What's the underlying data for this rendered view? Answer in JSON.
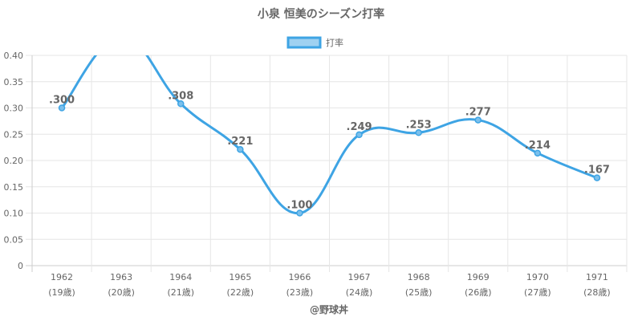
{
  "chart_data": {
    "type": "line",
    "title": "小泉 恒美のシーズン打率",
    "legend": {
      "label": "打率",
      "position": "top"
    },
    "series": [
      {
        "name": "打率",
        "color": "#3ea4e4",
        "values": [
          0.3,
          0.435,
          0.308,
          0.221,
          0.1,
          0.249,
          0.253,
          0.277,
          0.214,
          0.167
        ],
        "labels": [
          ".300",
          "",
          ".308",
          ".221",
          ".100",
          ".249",
          ".253",
          ".277",
          ".214",
          ".167"
        ]
      }
    ],
    "categories": [
      {
        "year": "1962",
        "age": "(19歳)"
      },
      {
        "year": "1963",
        "age": "(20歳)"
      },
      {
        "year": "1964",
        "age": "(21歳)"
      },
      {
        "year": "1965",
        "age": "(22歳)"
      },
      {
        "year": "1966",
        "age": "(23歳)"
      },
      {
        "year": "1967",
        "age": "(24歳)"
      },
      {
        "year": "1968",
        "age": "(25歳)"
      },
      {
        "year": "1969",
        "age": "(26歳)"
      },
      {
        "year": "1970",
        "age": "(27歳)"
      },
      {
        "year": "1971",
        "age": "(28歳)"
      }
    ],
    "yticks": [
      "0",
      "0.05",
      "0.10",
      "0.15",
      "0.20",
      "0.25",
      "0.30",
      "0.35",
      "0.40"
    ],
    "ylim": [
      0,
      0.4
    ],
    "grid": true
  },
  "footer": "@野球丼"
}
